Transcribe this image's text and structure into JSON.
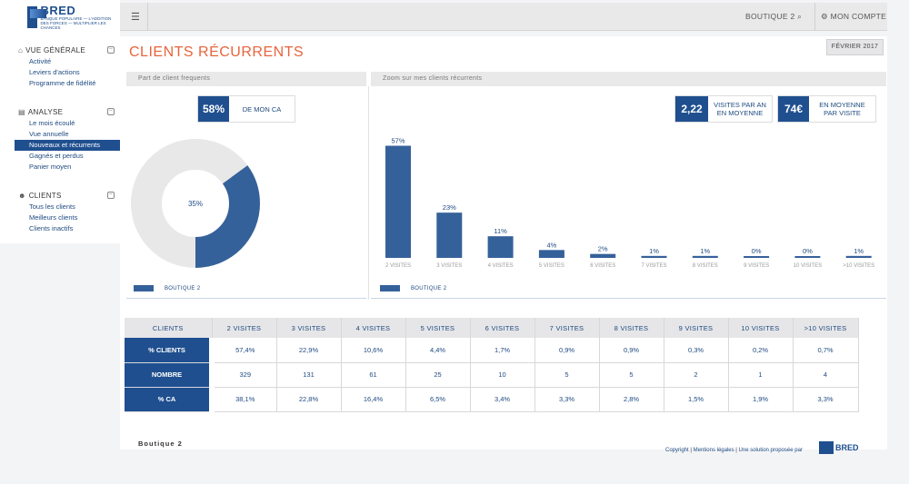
{
  "brand": {
    "name": "BRED",
    "badge": "+X",
    "tagline": "BANQUE POPULAIRE — L'ADDITION DES FORCES — MULTIPLIER LES CHANCES"
  },
  "colors": {
    "accent": "#1f4f8f",
    "title": "#e8643c",
    "bar": "#35619a",
    "donut_bg": "#e8e8e8"
  },
  "sidebar": {
    "sections": [
      {
        "label": "VUE GÉNÉRALE",
        "icon": "home-icon",
        "items": [
          "Activité",
          "Leviers d'actions",
          "Programme de fidélité"
        ]
      },
      {
        "label": "ANALYSE",
        "icon": "chart-icon",
        "items": [
          "Le mois écoulé",
          "Vue annuelle",
          "Nouveaux et récurrents",
          "Gagnés et perdus",
          "Panier moyen"
        ]
      },
      {
        "label": "CLIENTS",
        "icon": "users-icon",
        "items": [
          "Tous les clients",
          "Meilleurs clients",
          "Clients inactifs"
        ]
      }
    ],
    "active_item": "Nouveaux et récurrents"
  },
  "topbar": {
    "shop": "BOUTIQUE 2",
    "account": "MON COMPTE"
  },
  "page": {
    "title": "CLIENTS RÉCURRENTS",
    "date": "FÉVRIER 2017"
  },
  "left_panel": {
    "title": "Part de client frequents",
    "stat_value": "58%",
    "stat_label": "DE MON CA",
    "donut_label": "35%",
    "legend": "BOUTIQUE 2"
  },
  "right_panel": {
    "title": "Zoom sur mes clients récurrents",
    "stat1_value": "2,22",
    "stat1_label": "VISITES PAR AN EN MOYENNE",
    "stat2_value": "74€",
    "stat2_label": "EN MOYENNE PAR VISITE",
    "legend": "BOUTIQUE 2"
  },
  "chart_data": [
    {
      "type": "pie",
      "donut": true,
      "center_label": "35%",
      "values": [
        35,
        65
      ],
      "legend": [
        "BOUTIQUE 2"
      ]
    },
    {
      "type": "bar",
      "categories": [
        "2 VISITES",
        "3 VISITES",
        "4 VISITES",
        "5 VISITES",
        "6 VISITES",
        "7 VISITES",
        "8 VISITES",
        "9 VISITES",
        "10 VISITES",
        ">10 VISITES"
      ],
      "values": [
        57,
        23,
        11,
        4,
        2,
        1,
        1,
        0,
        0,
        1
      ],
      "labels": [
        "57%",
        "23%",
        "11%",
        "4%",
        "2%",
        "1%",
        "1%",
        "0%",
        "0%",
        "1%"
      ],
      "legend": [
        "BOUTIQUE 2"
      ],
      "ylim": [
        0,
        60
      ]
    }
  ],
  "table": {
    "headers": [
      "CLIENTS",
      "2 VISITES",
      "3 VISITES",
      "4 VISITES",
      "5 VISITES",
      "6 VISITES",
      "7 VISITES",
      "8 VISITES",
      "9 VISITES",
      "10 VISITES",
      ">10 VISITES"
    ],
    "rows": [
      {
        "label": "% CLIENTS",
        "cells": [
          "57,4%",
          "22,9%",
          "10,6%",
          "4,4%",
          "1,7%",
          "0,9%",
          "0,9%",
          "0,3%",
          "0,2%",
          "0,7%"
        ]
      },
      {
        "label": "NOMBRE",
        "cells": [
          "329",
          "131",
          "61",
          "25",
          "10",
          "5",
          "5",
          "2",
          "1",
          "4"
        ]
      },
      {
        "label": "% CA",
        "cells": [
          "38,1%",
          "22,8%",
          "16,4%",
          "6,5%",
          "3,4%",
          "3,3%",
          "2,8%",
          "1,5%",
          "1,9%",
          "3,3%"
        ]
      }
    ]
  },
  "footer": {
    "shop": "Boutique 2",
    "copyright": "Copyright",
    "legal": "Mentions légales",
    "solution": "Une solution proposée par",
    "brand": "BRED"
  }
}
